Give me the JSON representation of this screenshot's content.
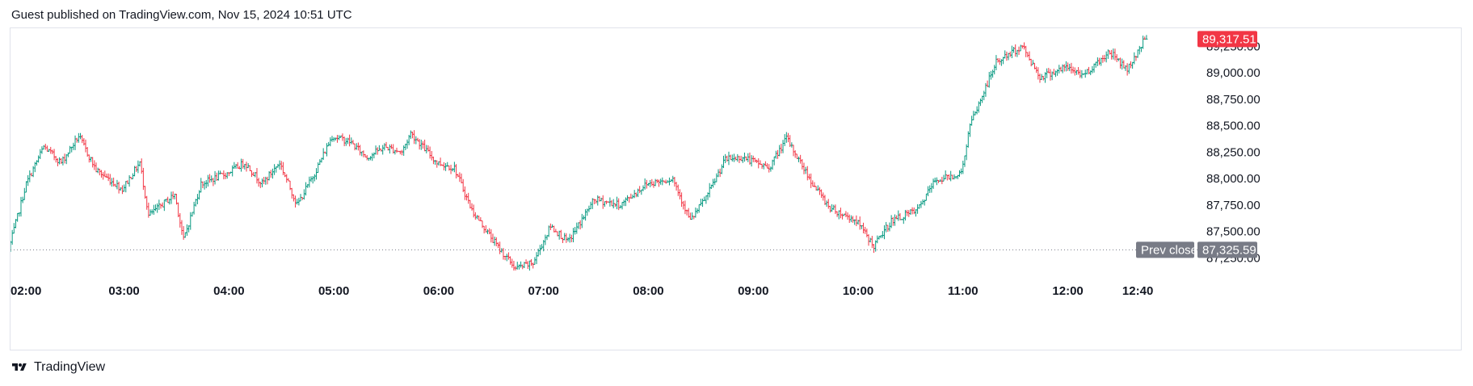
{
  "header": {
    "text": "Guest published on TradingView.com, Nov 15, 2024 10:51 UTC"
  },
  "footer": {
    "brand": "TradingView"
  },
  "colors": {
    "up": "#089981",
    "down": "#f23645",
    "grid": "#e0e3eb",
    "prev_close_badge": "#787b86",
    "last_price_badge": "#f23645"
  },
  "chart_data": {
    "type": "ohlc",
    "price_axis_labels": [
      "89,000.00",
      "88,750.00",
      "88,500.00",
      "88,250.00",
      "88,000.00",
      "87,750.00",
      "87,500.00"
    ],
    "partial_axis_labels": [
      "89,250.00",
      "87,250.00"
    ],
    "time_axis_labels": [
      "02:00",
      "03:00",
      "04:00",
      "05:00",
      "06:00",
      "07:00",
      "08:00",
      "09:00",
      "10:00",
      "11:00",
      "12:00",
      "12:40"
    ],
    "last_price": {
      "value": 89317.51,
      "label": "89,317.51"
    },
    "prev_close": {
      "value": 87325.59,
      "label": "87,325.59",
      "title": "Prev close"
    },
    "ylim": [
      87130,
      89420
    ],
    "x_range": [
      "01:55",
      "13:10"
    ],
    "bar_interval_minutes": 1,
    "price_path": [
      [
        "01:55",
        87330
      ],
      [
        "02:05",
        87950
      ],
      [
        "02:15",
        88300
      ],
      [
        "02:25",
        88150
      ],
      [
        "02:35",
        88400
      ],
      [
        "02:45",
        88080
      ],
      [
        "03:00",
        87900
      ],
      [
        "03:10",
        88150
      ],
      [
        "03:15",
        87650
      ],
      [
        "03:30",
        87850
      ],
      [
        "03:35",
        87420
      ],
      [
        "03:45",
        87950
      ],
      [
        "04:00",
        88050
      ],
      [
        "04:10",
        88150
      ],
      [
        "04:20",
        87950
      ],
      [
        "04:30",
        88150
      ],
      [
        "04:40",
        87750
      ],
      [
        "04:50",
        88050
      ],
      [
        "05:00",
        88400
      ],
      [
        "05:10",
        88350
      ],
      [
        "05:20",
        88200
      ],
      [
        "05:30",
        88300
      ],
      [
        "05:40",
        88250
      ],
      [
        "05:45",
        88430
      ],
      [
        "06:00",
        88150
      ],
      [
        "06:10",
        88100
      ],
      [
        "06:20",
        87700
      ],
      [
        "06:35",
        87350
      ],
      [
        "06:45",
        87150
      ],
      [
        "06:55",
        87200
      ],
      [
        "07:05",
        87550
      ],
      [
        "07:15",
        87400
      ],
      [
        "07:30",
        87800
      ],
      [
        "07:45",
        87750
      ],
      [
        "08:00",
        87950
      ],
      [
        "08:15",
        88000
      ],
      [
        "08:25",
        87600
      ],
      [
        "08:35",
        87850
      ],
      [
        "08:45",
        88180
      ],
      [
        "08:55",
        88200
      ],
      [
        "09:10",
        88100
      ],
      [
        "09:20",
        88380
      ],
      [
        "09:35",
        87950
      ],
      [
        "09:45",
        87720
      ],
      [
        "10:00",
        87600
      ],
      [
        "10:10",
        87360
      ],
      [
        "10:20",
        87600
      ],
      [
        "10:35",
        87700
      ],
      [
        "10:45",
        87980
      ],
      [
        "11:00",
        88050
      ],
      [
        "11:05",
        88500
      ],
      [
        "11:20",
        89100
      ],
      [
        "11:35",
        89250
      ],
      [
        "11:45",
        88960
      ],
      [
        "12:00",
        89050
      ],
      [
        "12:10",
        88980
      ],
      [
        "12:25",
        89200
      ],
      [
        "12:35",
        89030
      ],
      [
        "12:45",
        89317.51
      ]
    ]
  }
}
